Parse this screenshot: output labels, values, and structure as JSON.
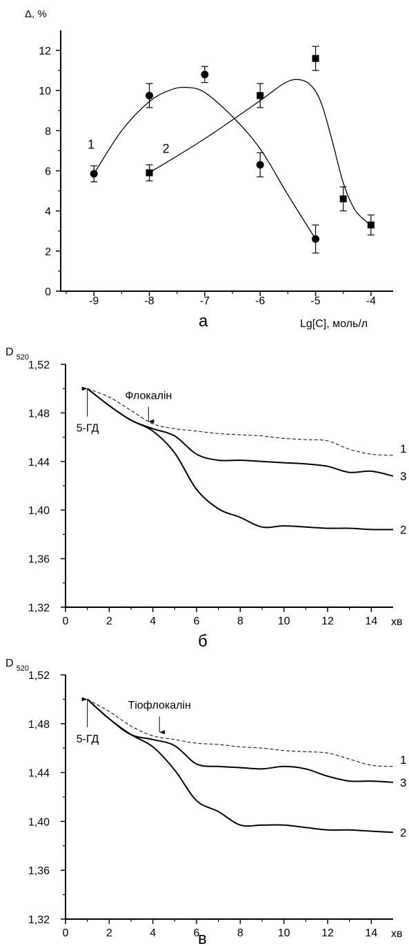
{
  "chart_data": [
    {
      "panel": "a",
      "type": "scatter",
      "ylabel": "Δ, %",
      "xlabel": "Lg[C], моль/л",
      "xlim": [
        -9.6,
        -3.6
      ],
      "ylim": [
        0,
        13
      ],
      "xticks": [
        -9,
        -8,
        -7,
        -6,
        -5,
        -4
      ],
      "xtick_labels": [
        "-9",
        "-8",
        "-7",
        "-6",
        "-5",
        "-4"
      ],
      "yticks": [
        0,
        2,
        4,
        6,
        8,
        10,
        12
      ],
      "ytick_labels": [
        "0",
        "2",
        "4",
        "6",
        "8",
        "10",
        "12"
      ],
      "series": [
        {
          "name": "1",
          "marker": "circle",
          "x": [
            -9,
            -8,
            -7,
            -6,
            -5
          ],
          "y": [
            5.85,
            9.75,
            10.8,
            6.3,
            2.6
          ],
          "err": [
            0.4,
            0.6,
            0.4,
            0.6,
            0.7
          ],
          "fit": [
            [
              -9,
              5.85
            ],
            [
              -8.5,
              8.0
            ],
            [
              -8,
              9.45
            ],
            [
              -7.6,
              10.05
            ],
            [
              -7.3,
              10.15
            ],
            [
              -7,
              9.9
            ],
            [
              -6.5,
              8.7
            ],
            [
              -6,
              7.1
            ],
            [
              -5.5,
              4.8
            ],
            [
              -5,
              2.6
            ]
          ]
        },
        {
          "name": "2",
          "marker": "square",
          "x": [
            -8,
            -6,
            -5,
            -4.5,
            -4
          ],
          "y": [
            5.9,
            9.75,
            11.6,
            4.6,
            3.3
          ],
          "err": [
            0.4,
            0.6,
            0.6,
            0.6,
            0.5
          ],
          "fit": [
            [
              -8,
              5.9
            ],
            [
              -7,
              7.6
            ],
            [
              -6,
              9.5
            ],
            [
              -5.6,
              10.3
            ],
            [
              -5.35,
              10.55
            ],
            [
              -5.1,
              10.3
            ],
            [
              -4.9,
              9.4
            ],
            [
              -4.7,
              7.5
            ],
            [
              -4.5,
              5.4
            ],
            [
              -4.3,
              4.1
            ],
            [
              -4.1,
              3.5
            ],
            [
              -4,
              3.3
            ]
          ]
        }
      ],
      "series_label_positions": [
        {
          "label": "1",
          "x": -9.05,
          "y": 7.1
        },
        {
          "label": "2",
          "x": -7.7,
          "y": 6.9
        }
      ]
    },
    {
      "panel": "б",
      "type": "line",
      "ylabel": "D",
      "ylabel_sub": "520",
      "xlabel": "хв",
      "xlim": [
        0,
        15
      ],
      "ylim": [
        1.32,
        1.52
      ],
      "xticks": [
        0,
        2,
        4,
        6,
        8,
        10,
        12,
        14
      ],
      "xtick_labels": [
        "0",
        "2",
        "4",
        "6",
        "8",
        "10",
        "12",
        "14"
      ],
      "yticks": [
        1.32,
        1.36,
        1.4,
        1.44,
        1.48,
        1.52
      ],
      "ytick_labels": [
        "1,32",
        "1,36",
        "1,40",
        "1,44",
        "1,48",
        "1,52"
      ],
      "annotations": [
        {
          "text": "Флокалін",
          "arrow_x": 3.8,
          "arrow_y_from": 1.485,
          "arrow_y_to": 1.473
        },
        {
          "text": "5-ГД",
          "arrow_x": 1.0,
          "arrow_y_from": 1.477,
          "arrow_y_to": 1.5
        }
      ],
      "series": [
        {
          "name": "1",
          "style": "dashed",
          "x": [
            1,
            2,
            3,
            4,
            5,
            6,
            7,
            8,
            9,
            10,
            11,
            12,
            13,
            14,
            15
          ],
          "y": [
            1.5,
            1.493,
            1.482,
            1.471,
            1.467,
            1.465,
            1.463,
            1.462,
            1.461,
            1.459,
            1.458,
            1.457,
            1.45,
            1.446,
            1.445
          ]
        },
        {
          "name": "3",
          "style": "solid",
          "x": [
            1,
            2,
            3,
            4,
            5,
            6,
            7,
            8,
            9,
            10,
            11,
            12,
            13,
            14,
            15
          ],
          "y": [
            1.5,
            1.486,
            1.474,
            1.467,
            1.461,
            1.446,
            1.441,
            1.441,
            1.44,
            1.439,
            1.438,
            1.436,
            1.431,
            1.432,
            1.428
          ]
        },
        {
          "name": "2",
          "style": "solid",
          "x": [
            1,
            2,
            3,
            4,
            5,
            6,
            7,
            8,
            9,
            10,
            11,
            12,
            13,
            14,
            15
          ],
          "y": [
            1.5,
            1.486,
            1.474,
            1.465,
            1.447,
            1.417,
            1.401,
            1.394,
            1.386,
            1.387,
            1.386,
            1.385,
            1.385,
            1.384,
            1.384
          ]
        }
      ]
    },
    {
      "panel": "в",
      "type": "line",
      "ylabel": "D",
      "ylabel_sub": "520",
      "xlabel": "хв",
      "xlim": [
        0,
        15
      ],
      "ylim": [
        1.32,
        1.52
      ],
      "xticks": [
        0,
        2,
        4,
        6,
        8,
        10,
        12,
        14
      ],
      "xtick_labels": [
        "0",
        "2",
        "4",
        "6",
        "8",
        "10",
        "12",
        "14"
      ],
      "yticks": [
        1.32,
        1.36,
        1.4,
        1.44,
        1.48,
        1.52
      ],
      "ytick_labels": [
        "1,32",
        "1,36",
        "1,40",
        "1,44",
        "1,48",
        "1,52"
      ],
      "annotations": [
        {
          "text": "Тіофлокалін",
          "arrow_x": 4.3,
          "arrow_y_from": 1.486,
          "arrow_y_to": 1.473
        },
        {
          "text": "5-ГД",
          "arrow_x": 1.0,
          "arrow_y_from": 1.477,
          "arrow_y_to": 1.5
        }
      ],
      "series": [
        {
          "name": "1",
          "style": "dashed",
          "x": [
            1,
            2,
            3,
            4,
            5,
            6,
            7,
            8,
            9,
            10,
            11,
            12,
            13,
            14,
            15
          ],
          "y": [
            1.5,
            1.49,
            1.478,
            1.47,
            1.467,
            1.464,
            1.463,
            1.461,
            1.46,
            1.458,
            1.457,
            1.456,
            1.451,
            1.446,
            1.445
          ]
        },
        {
          "name": "3",
          "style": "solid",
          "x": [
            1,
            2,
            3,
            4,
            5,
            6,
            7,
            8,
            9,
            10,
            11,
            12,
            13,
            14,
            15
          ],
          "y": [
            1.5,
            1.484,
            1.471,
            1.467,
            1.462,
            1.447,
            1.445,
            1.444,
            1.443,
            1.445,
            1.443,
            1.437,
            1.433,
            1.433,
            1.432
          ]
        },
        {
          "name": "2",
          "style": "solid",
          "x": [
            1,
            2,
            3,
            4,
            5,
            6,
            7,
            8,
            9,
            10,
            11,
            12,
            13,
            14,
            15
          ],
          "y": [
            1.5,
            1.484,
            1.471,
            1.461,
            1.442,
            1.417,
            1.408,
            1.397,
            1.397,
            1.397,
            1.395,
            1.393,
            1.393,
            1.392,
            1.391
          ]
        }
      ]
    }
  ]
}
